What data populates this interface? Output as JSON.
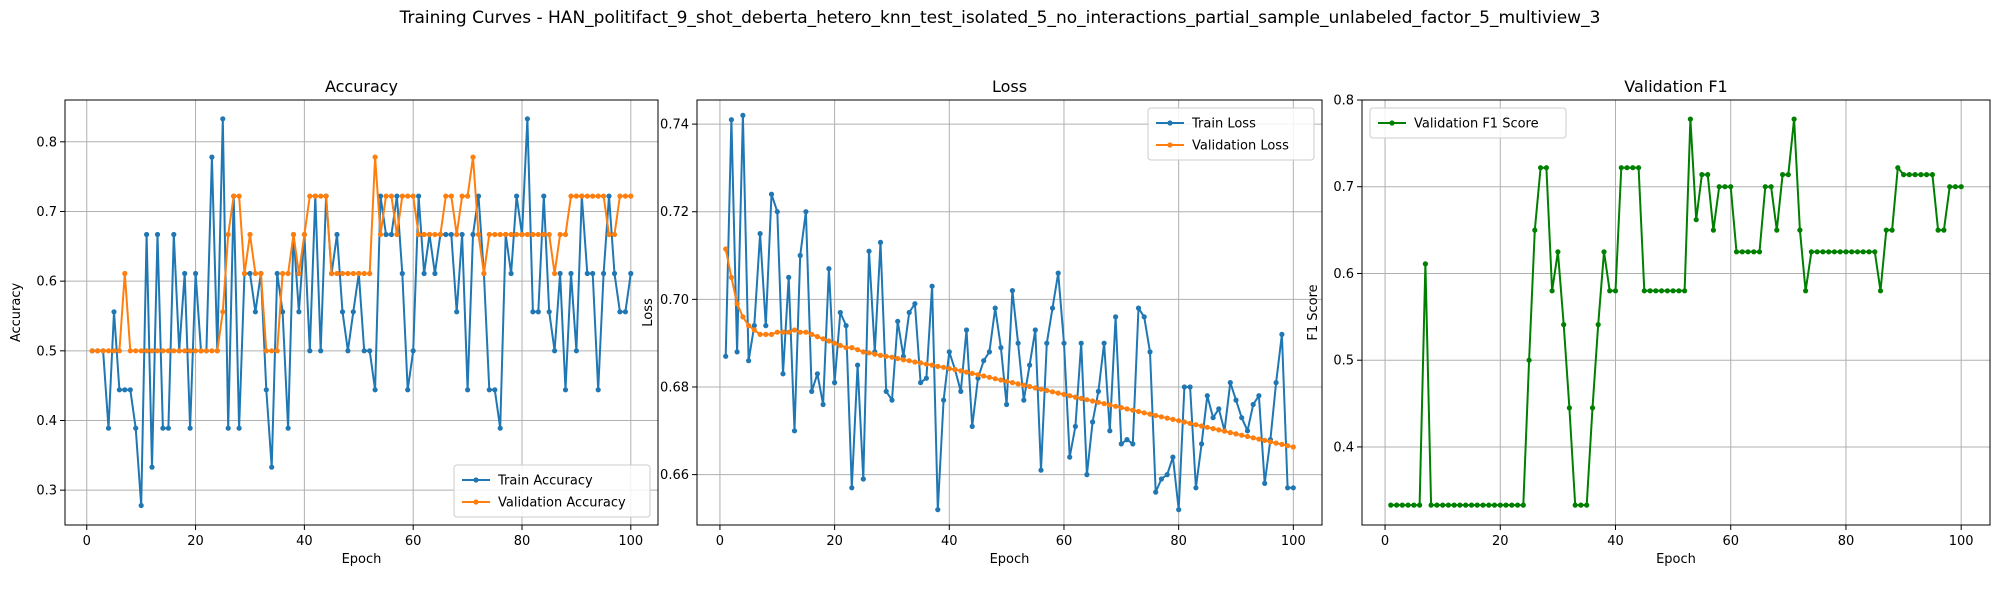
{
  "figure": {
    "suptitle": "Training Curves - HAN_politifact_9_shot_deberta_hetero_knn_test_isolated_5_no_interactions_partial_sample_unlabeled_factor_5_multiview_3"
  },
  "colors": {
    "blue": "#1f77b4",
    "orange": "#ff7f0e",
    "green": "#008000",
    "grid": "#b0b0b0"
  },
  "chart_data": [
    {
      "type": "line",
      "title": "Accuracy",
      "xlabel": "Epoch",
      "ylabel": "Accuracy",
      "xlim": [
        -4,
        105
      ],
      "ylim": [
        0.25,
        0.86
      ],
      "xticks": [
        0,
        20,
        40,
        60,
        80,
        100
      ],
      "yticks": [
        0.3,
        0.4,
        0.5,
        0.6,
        0.7,
        0.8
      ],
      "legend": "lower-right",
      "series": [
        {
          "name": "Train Accuracy",
          "color": "#1f77b4",
          "values": [
            0.5,
            0.5,
            0.5,
            0.389,
            0.556,
            0.444,
            0.444,
            0.444,
            0.389,
            0.278,
            0.667,
            0.333,
            0.667,
            0.389,
            0.389,
            0.667,
            0.5,
            0.611,
            0.389,
            0.611,
            0.5,
            0.5,
            0.778,
            0.5,
            0.833,
            0.389,
            0.722,
            0.389,
            0.611,
            0.611,
            0.556,
            0.611,
            0.444,
            0.333,
            0.611,
            0.556,
            0.389,
            0.667,
            0.556,
            0.667,
            0.5,
            0.722,
            0.5,
            0.722,
            0.611,
            0.667,
            0.556,
            0.5,
            0.556,
            0.611,
            0.5,
            0.5,
            0.444,
            0.722,
            0.667,
            0.667,
            0.722,
            0.611,
            0.444,
            0.5,
            0.722,
            0.611,
            0.667,
            0.611,
            0.667,
            0.667,
            0.667,
            0.556,
            0.667,
            0.444,
            0.667,
            0.722,
            0.611,
            0.444,
            0.444,
            0.389,
            0.667,
            0.611,
            0.722,
            0.667,
            0.833,
            0.556,
            0.556,
            0.722,
            0.556,
            0.5,
            0.611,
            0.444,
            0.611,
            0.5,
            0.722,
            0.611,
            0.611,
            0.444,
            0.611,
            0.722,
            0.611,
            0.556,
            0.556,
            0.611
          ]
        },
        {
          "name": "Validation Accuracy",
          "color": "#ff7f0e",
          "values": [
            0.5,
            0.5,
            0.5,
            0.5,
            0.5,
            0.5,
            0.611,
            0.5,
            0.5,
            0.5,
            0.5,
            0.5,
            0.5,
            0.5,
            0.5,
            0.5,
            0.5,
            0.5,
            0.5,
            0.5,
            0.5,
            0.5,
            0.5,
            0.5,
            0.556,
            0.667,
            0.722,
            0.722,
            0.611,
            0.667,
            0.611,
            0.611,
            0.5,
            0.5,
            0.5,
            0.611,
            0.611,
            0.667,
            0.611,
            0.667,
            0.722,
            0.722,
            0.722,
            0.722,
            0.611,
            0.611,
            0.611,
            0.611,
            0.611,
            0.611,
            0.611,
            0.611,
            0.778,
            0.667,
            0.722,
            0.722,
            0.667,
            0.722,
            0.722,
            0.722,
            0.667,
            0.667,
            0.667,
            0.667,
            0.667,
            0.722,
            0.722,
            0.667,
            0.722,
            0.722,
            0.778,
            0.667,
            0.611,
            0.667,
            0.667,
            0.667,
            0.667,
            0.667,
            0.667,
            0.667,
            0.667,
            0.667,
            0.667,
            0.667,
            0.667,
            0.611,
            0.667,
            0.667,
            0.722,
            0.722,
            0.722,
            0.722,
            0.722,
            0.722,
            0.722,
            0.667,
            0.667,
            0.722,
            0.722,
            0.722
          ]
        }
      ]
    },
    {
      "type": "line",
      "title": "Loss",
      "xlabel": "Epoch",
      "ylabel": "Loss",
      "xlim": [
        -4,
        105
      ],
      "ylim": [
        0.6485,
        0.7455
      ],
      "xticks": [
        0,
        20,
        40,
        60,
        80,
        100
      ],
      "yticks": [
        0.66,
        0.68,
        0.7,
        0.72,
        0.74
      ],
      "legend": "top-right",
      "series": [
        {
          "name": "Train Loss",
          "color": "#1f77b4",
          "values": [
            0.687,
            0.741,
            0.688,
            0.742,
            0.686,
            0.694,
            0.715,
            0.694,
            0.724,
            0.72,
            0.683,
            0.705,
            0.67,
            0.71,
            0.72,
            0.679,
            0.683,
            0.676,
            0.707,
            0.681,
            0.697,
            0.694,
            0.657,
            0.685,
            0.659,
            0.711,
            0.688,
            0.713,
            0.679,
            0.677,
            0.695,
            0.687,
            0.697,
            0.699,
            0.681,
            0.682,
            0.703,
            0.652,
            0.677,
            0.688,
            0.684,
            0.679,
            0.693,
            0.671,
            0.682,
            0.686,
            0.688,
            0.698,
            0.689,
            0.676,
            0.702,
            0.69,
            0.677,
            0.685,
            0.693,
            0.661,
            0.69,
            0.698,
            0.706,
            0.69,
            0.664,
            0.671,
            0.69,
            0.66,
            0.672,
            0.679,
            0.69,
            0.67,
            0.696,
            0.667,
            0.668,
            0.667,
            0.698,
            0.696,
            0.688,
            0.656,
            0.659,
            0.66,
            0.664,
            0.652,
            0.68,
            0.68,
            0.657,
            0.667,
            0.678,
            0.673,
            0.675,
            0.67,
            0.681,
            0.677,
            0.673,
            0.67,
            0.676,
            0.678,
            0.658,
            0.668,
            0.681,
            0.692,
            0.657,
            0.657
          ]
        },
        {
          "name": "Validation Loss",
          "color": "#ff7f0e",
          "values": [
            0.7115,
            0.705,
            0.699,
            0.696,
            0.694,
            0.693,
            0.692,
            0.692,
            0.692,
            0.6925,
            0.6925,
            0.6925,
            0.693,
            0.6925,
            0.6925,
            0.692,
            0.6915,
            0.691,
            0.6905,
            0.69,
            0.6895,
            0.689,
            0.689,
            0.6885,
            0.688,
            0.6878,
            0.6875,
            0.6872,
            0.687,
            0.6868,
            0.6865,
            0.6862,
            0.686,
            0.6857,
            0.6855,
            0.6852,
            0.685,
            0.6847,
            0.6845,
            0.6842,
            0.684,
            0.6837,
            0.6834,
            0.6831,
            0.6828,
            0.6825,
            0.6822,
            0.6819,
            0.6816,
            0.6813,
            0.681,
            0.6807,
            0.6804,
            0.6801,
            0.6798,
            0.6795,
            0.6792,
            0.6789,
            0.6786,
            0.6783,
            0.678,
            0.6777,
            0.6774,
            0.6771,
            0.6768,
            0.6765,
            0.6762,
            0.6759,
            0.6756,
            0.6753,
            0.675,
            0.6747,
            0.6744,
            0.6741,
            0.6738,
            0.6735,
            0.6732,
            0.6729,
            0.6726,
            0.6723,
            0.672,
            0.6717,
            0.6714,
            0.6711,
            0.6708,
            0.6705,
            0.6702,
            0.6699,
            0.6696,
            0.6693,
            0.669,
            0.6687,
            0.6684,
            0.6681,
            0.6678,
            0.6675,
            0.6672,
            0.6669,
            0.6666,
            0.6663
          ]
        }
      ]
    },
    {
      "type": "line",
      "title": "Validation F1",
      "xlabel": "Epoch",
      "ylabel": "F1 Score",
      "xlim": [
        -4,
        105
      ],
      "ylim": [
        0.31,
        0.8
      ],
      "xticks": [
        0,
        20,
        40,
        60,
        80,
        100
      ],
      "yticks": [
        0.4,
        0.5,
        0.6,
        0.7,
        0.8
      ],
      "legend": "top-left",
      "series": [
        {
          "name": "Validation F1 Score",
          "color": "#008000",
          "values": [
            0.333,
            0.333,
            0.333,
            0.333,
            0.333,
            0.333,
            0.611,
            0.333,
            0.333,
            0.333,
            0.333,
            0.333,
            0.333,
            0.333,
            0.333,
            0.333,
            0.333,
            0.333,
            0.333,
            0.333,
            0.333,
            0.333,
            0.333,
            0.333,
            0.5,
            0.65,
            0.722,
            0.722,
            0.58,
            0.625,
            0.541,
            0.445,
            0.333,
            0.333,
            0.333,
            0.445,
            0.541,
            0.625,
            0.58,
            0.58,
            0.722,
            0.722,
            0.722,
            0.722,
            0.58,
            0.58,
            0.58,
            0.58,
            0.58,
            0.58,
            0.58,
            0.58,
            0.778,
            0.662,
            0.714,
            0.714,
            0.65,
            0.7,
            0.7,
            0.7,
            0.625,
            0.625,
            0.625,
            0.625,
            0.625,
            0.7,
            0.7,
            0.65,
            0.714,
            0.714,
            0.778,
            0.65,
            0.58,
            0.625,
            0.625,
            0.625,
            0.625,
            0.625,
            0.625,
            0.625,
            0.625,
            0.625,
            0.625,
            0.625,
            0.625,
            0.58,
            0.65,
            0.65,
            0.722,
            0.714,
            0.714,
            0.714,
            0.714,
            0.714,
            0.714,
            0.65,
            0.65,
            0.7,
            0.7,
            0.7
          ]
        }
      ]
    }
  ]
}
